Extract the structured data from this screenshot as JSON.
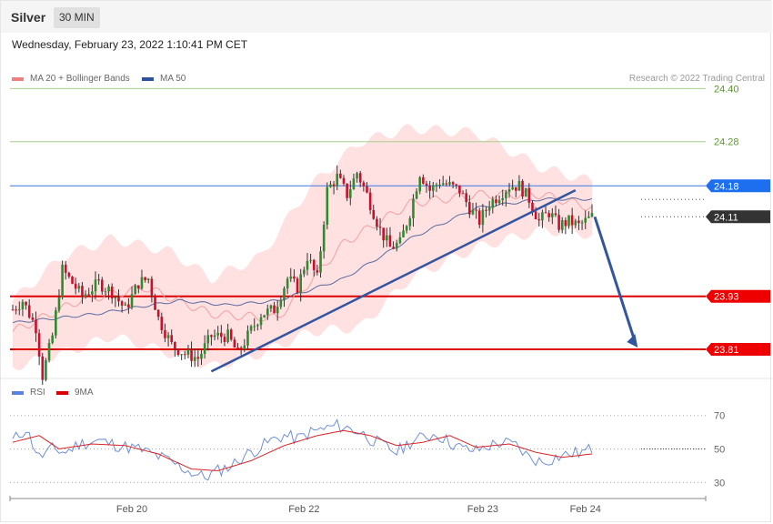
{
  "header": {
    "title": "Silver",
    "interval": "30 MIN",
    "datetime": "Wednesday, February 23, 2022 1:10:41 PM CET",
    "credit": "Research © 2022 Trading Central"
  },
  "legend": {
    "bb_label": "MA 20 + Bollinger Bands",
    "ma50_label": "MA 50",
    "rsi_label": "RSI",
    "rsi_ma_label": "9MA"
  },
  "colors": {
    "up": "#2e8b2e",
    "down": "#c8102e",
    "band": "#ffdcdc",
    "ma20": "#f4a0a0",
    "ma50": "#5a6aa0",
    "trend": "#3355a0",
    "resistance": "#a8d08d",
    "pivot_blue": "#3a78e0",
    "support": "#dd0000",
    "current": "#333333",
    "rsi": "#6f8fd8",
    "rsi_ma": "#dd2222"
  },
  "chart_data": {
    "type": "candlestick",
    "yrange": [
      23.74,
      24.44
    ],
    "levels": [
      {
        "label": "24.40",
        "value": 24.4,
        "kind": "resistance"
      },
      {
        "label": "24.28",
        "value": 24.28,
        "kind": "resistance"
      },
      {
        "label": "24.18",
        "value": 24.18,
        "kind": "pivot"
      },
      {
        "label": "24.11",
        "value": 24.11,
        "kind": "current"
      },
      {
        "label": "23.93",
        "value": 23.93,
        "kind": "support"
      },
      {
        "label": "23.81",
        "value": 23.81,
        "kind": "support"
      }
    ],
    "x_labels": [
      {
        "label": "Feb 20",
        "index": 36
      },
      {
        "label": "Feb 22",
        "index": 88
      },
      {
        "label": "Feb 23",
        "index": 142
      },
      {
        "label": "Feb 24",
        "index": 173
      }
    ],
    "candle_count": 176,
    "ohlc_anchors": [
      [
        0,
        23.9
      ],
      [
        3,
        23.92
      ],
      [
        7,
        23.86
      ],
      [
        9,
        23.75
      ],
      [
        12,
        23.84
      ],
      [
        15,
        23.99
      ],
      [
        18,
        23.96
      ],
      [
        21,
        23.93
      ],
      [
        26,
        23.96
      ],
      [
        30,
        23.94
      ],
      [
        34,
        23.9
      ],
      [
        38,
        23.96
      ],
      [
        41,
        23.97
      ],
      [
        44,
        23.88
      ],
      [
        48,
        23.82
      ],
      [
        52,
        23.8
      ],
      [
        56,
        23.79
      ],
      [
        60,
        23.84
      ],
      [
        65,
        23.84
      ],
      [
        68,
        23.8
      ],
      [
        71,
        23.84
      ],
      [
        75,
        23.89
      ],
      [
        79,
        23.9
      ],
      [
        83,
        23.97
      ],
      [
        86,
        23.95
      ],
      [
        89,
        24.02
      ],
      [
        92,
        23.97
      ],
      [
        95,
        24.17
      ],
      [
        98,
        24.2
      ],
      [
        101,
        24.16
      ],
      [
        104,
        24.21
      ],
      [
        107,
        24.16
      ],
      [
        111,
        24.08
      ],
      [
        114,
        24.04
      ],
      [
        117,
        24.05
      ],
      [
        120,
        24.12
      ],
      [
        123,
        24.21
      ],
      [
        126,
        24.17
      ],
      [
        129,
        24.19
      ],
      [
        132,
        24.18
      ],
      [
        135,
        24.17
      ],
      [
        138,
        24.13
      ],
      [
        141,
        24.1
      ],
      [
        144,
        24.14
      ],
      [
        147,
        24.16
      ],
      [
        150,
        24.18
      ],
      [
        153,
        24.18
      ],
      [
        156,
        24.15
      ],
      [
        159,
        24.1
      ],
      [
        162,
        24.12
      ],
      [
        165,
        24.09
      ],
      [
        168,
        24.1
      ],
      [
        171,
        24.09
      ],
      [
        175,
        24.11
      ]
    ],
    "ma20_anchors": [
      [
        0,
        23.85
      ],
      [
        20,
        23.92
      ],
      [
        40,
        23.95
      ],
      [
        60,
        23.89
      ],
      [
        80,
        23.88
      ],
      [
        100,
        24.05
      ],
      [
        120,
        24.14
      ],
      [
        140,
        24.16
      ],
      [
        160,
        24.16
      ],
      [
        175,
        24.13
      ]
    ],
    "bb_upper_anchors": [
      [
        0,
        23.92
      ],
      [
        15,
        24.02
      ],
      [
        30,
        24.06
      ],
      [
        48,
        24.03
      ],
      [
        60,
        23.97
      ],
      [
        75,
        24.02
      ],
      [
        90,
        24.18
      ],
      [
        105,
        24.28
      ],
      [
        120,
        24.31
      ],
      [
        140,
        24.3
      ],
      [
        160,
        24.22
      ],
      [
        175,
        24.19
      ]
    ],
    "bb_lower_anchors": [
      [
        0,
        23.77
      ],
      [
        15,
        23.8
      ],
      [
        30,
        23.84
      ],
      [
        48,
        23.8
      ],
      [
        60,
        23.77
      ],
      [
        75,
        23.8
      ],
      [
        90,
        23.85
      ],
      [
        105,
        23.86
      ],
      [
        120,
        23.97
      ],
      [
        140,
        24.04
      ],
      [
        160,
        24.08
      ],
      [
        175,
        24.07
      ]
    ],
    "ma50_anchors": [
      [
        0,
        23.87
      ],
      [
        25,
        23.89
      ],
      [
        50,
        23.92
      ],
      [
        65,
        23.91
      ],
      [
        80,
        23.92
      ],
      [
        100,
        23.97
      ],
      [
        120,
        24.06
      ],
      [
        140,
        24.13
      ],
      [
        160,
        24.15
      ],
      [
        175,
        24.15
      ]
    ],
    "trendline": [
      [
        60,
        23.76
      ],
      [
        170,
        24.17
      ]
    ],
    "forecast_arrow": [
      [
        175,
        24.11
      ],
      [
        188,
        23.81
      ]
    ],
    "rsi": {
      "yrange": [
        22,
        78
      ],
      "ticks": [
        70,
        50,
        30
      ],
      "rsi_anchors": [
        [
          0,
          55
        ],
        [
          4,
          62
        ],
        [
          8,
          45
        ],
        [
          12,
          50
        ],
        [
          16,
          48
        ],
        [
          20,
          53
        ],
        [
          26,
          55
        ],
        [
          32,
          52
        ],
        [
          38,
          50
        ],
        [
          42,
          47
        ],
        [
          46,
          44
        ],
        [
          50,
          40
        ],
        [
          54,
          36
        ],
        [
          58,
          33
        ],
        [
          62,
          37
        ],
        [
          66,
          40
        ],
        [
          70,
          46
        ],
        [
          74,
          50
        ],
        [
          78,
          55
        ],
        [
          82,
          58
        ],
        [
          86,
          56
        ],
        [
          90,
          60
        ],
        [
          94,
          62
        ],
        [
          98,
          64
        ],
        [
          102,
          62
        ],
        [
          105,
          60
        ],
        [
          108,
          56
        ],
        [
          112,
          52
        ],
        [
          116,
          48
        ],
        [
          120,
          54
        ],
        [
          124,
          57
        ],
        [
          128,
          59
        ],
        [
          132,
          54
        ],
        [
          136,
          50
        ],
        [
          140,
          49
        ],
        [
          144,
          52
        ],
        [
          148,
          54
        ],
        [
          152,
          52
        ],
        [
          156,
          45
        ],
        [
          160,
          42
        ],
        [
          164,
          45
        ],
        [
          168,
          47
        ],
        [
          172,
          48
        ],
        [
          175,
          50
        ]
      ],
      "rsi_ma_anchors": [
        [
          0,
          54
        ],
        [
          8,
          58
        ],
        [
          14,
          50
        ],
        [
          24,
          53
        ],
        [
          34,
          52
        ],
        [
          44,
          47
        ],
        [
          54,
          38
        ],
        [
          62,
          37
        ],
        [
          72,
          43
        ],
        [
          82,
          52
        ],
        [
          92,
          58
        ],
        [
          100,
          61
        ],
        [
          108,
          58
        ],
        [
          116,
          52
        ],
        [
          124,
          54
        ],
        [
          132,
          58
        ],
        [
          140,
          51
        ],
        [
          150,
          53
        ],
        [
          158,
          48
        ],
        [
          166,
          45
        ],
        [
          175,
          47
        ]
      ]
    }
  }
}
